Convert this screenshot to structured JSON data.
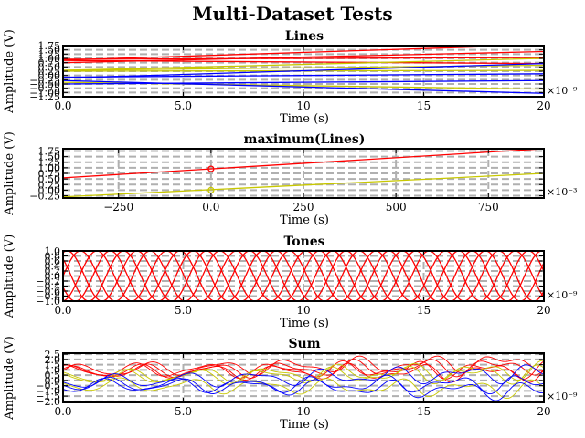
{
  "figure": {
    "title": "Multi-Dataset Tests"
  },
  "chart_data": [
    {
      "type": "line",
      "title": "Lines",
      "xlabel": "Time (s)",
      "ylabel": "Amplitude (V)",
      "xlim": [
        0,
        20
      ],
      "ylim": [
        -1.25,
        1.75
      ],
      "x_scale_label": "×10⁻⁹",
      "x_ticks": [
        "0.0",
        "5.0",
        "10",
        "15",
        "20"
      ],
      "x_tick_values": [
        0,
        5,
        10,
        15,
        20
      ],
      "y_ticks": [
        "1.75",
        "1.50",
        "1.25",
        "1.00",
        "0.75",
        "0.50",
        "0.25",
        "0.00",
        "−0.25",
        "−0.50",
        "−0.75",
        "−1.00",
        "−1.25"
      ],
      "y_tick_values": [
        1.75,
        1.5,
        1.25,
        1.0,
        0.75,
        0.5,
        0.25,
        0.0,
        -0.25,
        -0.5,
        -0.75,
        -1.0,
        -1.25
      ],
      "grid": true,
      "series": [
        {
          "color": "#ff0000",
          "x": [
            0,
            20
          ],
          "y": [
            0.9,
            1.8
          ]
        },
        {
          "color": "#ff0000",
          "x": [
            0,
            20
          ],
          "y": [
            0.75,
            1.4
          ]
        },
        {
          "color": "#ff0000",
          "x": [
            0,
            20
          ],
          "y": [
            0.88,
            0.7
          ]
        },
        {
          "color": "#ff0000",
          "x": [
            0,
            20
          ],
          "y": [
            0.95,
            1.05
          ]
        },
        {
          "color": "#c8c800",
          "x": [
            0,
            20
          ],
          "y": [
            0.3,
            1.0
          ]
        },
        {
          "color": "#c8c800",
          "x": [
            0,
            20
          ],
          "y": [
            0.3,
            0.6
          ]
        },
        {
          "color": "#c8c800",
          "x": [
            0,
            20
          ],
          "y": [
            -0.4,
            -0.8
          ]
        },
        {
          "color": "#c8c800",
          "x": [
            0,
            20
          ],
          "y": [
            0.25,
            0.3
          ]
        },
        {
          "color": "#0000ff",
          "x": [
            0,
            20
          ],
          "y": [
            -0.15,
            0.7
          ]
        },
        {
          "color": "#0000ff",
          "x": [
            0,
            20
          ],
          "y": [
            -0.3,
            -1.05
          ]
        },
        {
          "color": "#0000ff",
          "x": [
            0,
            20
          ],
          "y": [
            -0.5,
            -0.3
          ]
        },
        {
          "color": "#0000ff",
          "x": [
            0,
            20
          ],
          "y": [
            -0.1,
            0.1
          ]
        }
      ]
    },
    {
      "type": "line",
      "title": "maximum(Lines)",
      "xlabel": "Time (s)",
      "ylabel": "Amplitude (V)",
      "xlim": [
        -400,
        900
      ],
      "ylim": [
        -0.35,
        1.85
      ],
      "x_scale_label": "×10⁻³",
      "x_ticks": [
        "−250",
        "0.0",
        "250",
        "500",
        "750"
      ],
      "x_tick_values": [
        -250,
        0,
        250,
        500,
        750
      ],
      "y_ticks": [
        "1.75",
        "1.50",
        "1.25",
        "1.00",
        "0.75",
        "0.50",
        "0.25",
        "0.00",
        "−0.25"
      ],
      "y_tick_values": [
        1.75,
        1.5,
        1.25,
        1.0,
        0.75,
        0.5,
        0.25,
        0.0,
        -0.25
      ],
      "grid": true,
      "series": [
        {
          "color": "#ff0000",
          "x": [
            -400,
            900
          ],
          "y": [
            0.55,
            1.85
          ],
          "marker_x": 0,
          "marker_y": 0.95
        },
        {
          "color": "#c8c800",
          "x": [
            -400,
            900
          ],
          "y": [
            -0.3,
            0.75
          ],
          "marker_x": 0,
          "marker_y": 0.0
        }
      ]
    },
    {
      "type": "line",
      "title": "Tones",
      "xlabel": "Time (s)",
      "ylabel": "Amplitude (V)",
      "xlim": [
        0,
        20
      ],
      "ylim": [
        -1.0,
        1.0
      ],
      "x_scale_label": "×10⁻⁹",
      "x_ticks": [
        "0.0",
        "5.0",
        "10",
        "15",
        "20"
      ],
      "x_tick_values": [
        0,
        5,
        10,
        15,
        20
      ],
      "y_ticks": [
        "1.0",
        "0.8",
        "0.6",
        "0.4",
        "0.2",
        "0.0",
        "−0.2",
        "−0.4",
        "−0.6",
        "−0.8",
        "−1.0"
      ],
      "y_tick_values": [
        1.0,
        0.8,
        0.6,
        0.4,
        0.2,
        0.0,
        -0.2,
        -0.4,
        -0.6,
        -0.8,
        -1.0
      ],
      "grid": true,
      "tones": [
        {
          "color": "#ff0000",
          "period": 2.9,
          "phase": 0.0
        },
        {
          "color": "#ff0000",
          "period": 2.9,
          "phase": 1.2
        },
        {
          "color": "#ff0000",
          "period": 2.9,
          "phase": 2.4
        },
        {
          "color": "#ff0000",
          "period": 2.9,
          "phase": 3.6
        },
        {
          "color": "#ff0000",
          "period": 2.9,
          "phase": 4.8
        }
      ]
    },
    {
      "type": "line",
      "title": "Sum",
      "xlabel": "Time (s)",
      "ylabel": "Amplitude (V)",
      "xlim": [
        0,
        20
      ],
      "ylim": [
        -2.1,
        2.6
      ],
      "x_scale_label": "×10⁻⁹",
      "x_ticks": [
        "0.0",
        "5.0",
        "10",
        "15",
        "20"
      ],
      "x_tick_values": [
        0,
        5,
        10,
        15,
        20
      ],
      "y_ticks": [
        "2.5",
        "2.0",
        "1.5",
        "1.0",
        "0.5",
        "0.0",
        "−0.5",
        "−1.0",
        "−1.5",
        "−2.0"
      ],
      "y_tick_values": [
        2.5,
        2.0,
        1.5,
        1.0,
        0.5,
        0.0,
        -0.5,
        -1.0,
        -1.5,
        -2.0
      ],
      "grid": true,
      "components": [
        {
          "color": "#ff0000",
          "offset_start": 0.9,
          "offset_end": 1.8
        },
        {
          "color": "#ff0000",
          "offset_start": 0.75,
          "offset_end": 1.4
        },
        {
          "color": "#ff0000",
          "offset_start": 0.88,
          "offset_end": 0.7
        },
        {
          "color": "#ff0000",
          "offset_start": 0.95,
          "offset_end": 1.05
        },
        {
          "color": "#c8c800",
          "offset_start": 0.3,
          "offset_end": 1.0
        },
        {
          "color": "#c8c800",
          "offset_start": 0.3,
          "offset_end": 0.6
        },
        {
          "color": "#c8c800",
          "offset_start": -0.4,
          "offset_end": -0.8
        },
        {
          "color": "#0000ff",
          "offset_start": -0.15,
          "offset_end": 0.7
        },
        {
          "color": "#0000ff",
          "offset_start": -0.3,
          "offset_end": -1.05
        },
        {
          "color": "#0000ff",
          "offset_start": -0.5,
          "offset_end": -0.3
        }
      ]
    }
  ]
}
